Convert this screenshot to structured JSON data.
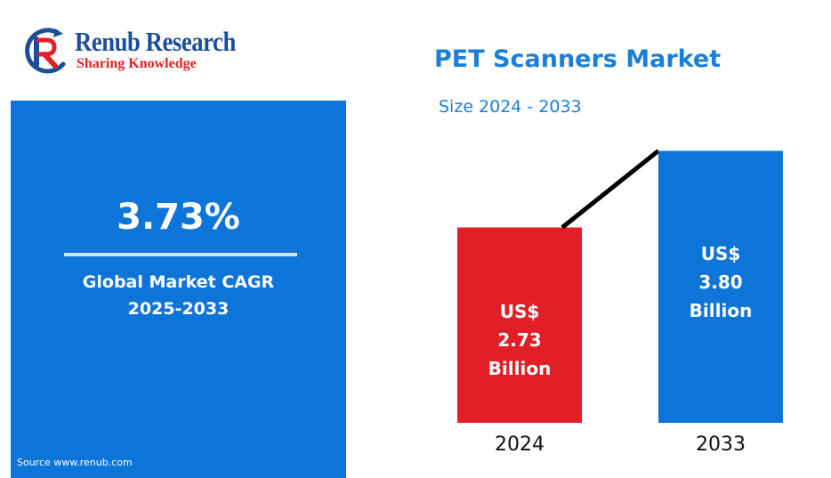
{
  "brand": {
    "name": "Renub Research",
    "tagline": "Sharing Knowledge",
    "logo_icon": "renub-r-logo-icon"
  },
  "header": {
    "title": "PET Scanners Market",
    "subtitle": "Size 2024 - 2033"
  },
  "kpi": {
    "value": "3.73%",
    "label_line1": "Global Market CAGR",
    "label_line2": "2025-2033",
    "source": "Source  www.renub.com"
  },
  "colors": {
    "panel": "#0d74d8",
    "bar_2024": "#e21e26",
    "bar_2033": "#0d74d8",
    "title": "#1b7fd6",
    "connector": "#000000"
  },
  "chart_data": {
    "type": "bar",
    "title": "PET Scanners Market",
    "subtitle": "Size 2024 - 2033",
    "categories": [
      "2024",
      "2033"
    ],
    "values": [
      2.73,
      3.8
    ],
    "unit": "US$ Billion",
    "bar_labels": [
      [
        "US$",
        "2.73",
        "Billion"
      ],
      [
        "US$",
        "3.80",
        "Billion"
      ]
    ],
    "xlabel": "",
    "ylabel": "",
    "grid": false,
    "legend": "none",
    "connector_line": true
  }
}
